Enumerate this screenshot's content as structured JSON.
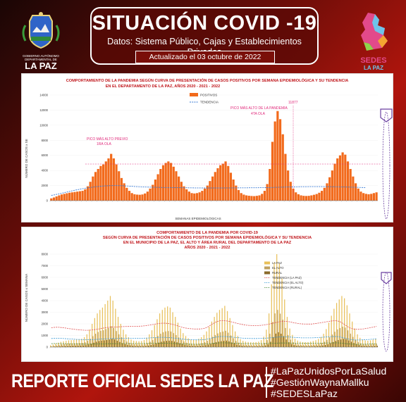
{
  "header": {
    "title": "SITUACIÓN COVID -19",
    "subtitle_line1": "Datos: Sistema Público, Cajas y Establecimientos Privados",
    "updated": "Actualizado el  03  octubre de 2022"
  },
  "logo_left": {
    "lines": [
      "GOBIERNO AUTÓNOMO",
      "DEPARTAMENTAL DE"
    ],
    "name": "LA PAZ"
  },
  "logo_right": {
    "name": "SEDES",
    "sub": "LA PAZ"
  },
  "colors": {
    "bar": "#f26a1b",
    "bar2": "#e8c05a",
    "bar3": "#8a6a2a",
    "trend": "#3a7bd5",
    "peak": "#e0287a",
    "footer_accent": "#ffffff"
  },
  "chart_data": [
    {
      "type": "bar",
      "title": "COMPORTAMIENTO DE LA PANDEMIA SEGÚN CURVA DE PRESENTACIÓN DE CASOS POSITIVOS POR SEMANA EPIDEMIOLÓGICA Y SU TENDENCIA",
      "subtitle": "EN EL DEPARTAMENTO DE LA PAZ, AÑOS 2020 - 2021 - 2022",
      "ylabel": "NÚMERO DE CASOS x SE",
      "xlabel": "SEMANAS EPIDEMIOLÓGICAS",
      "ylim": [
        0,
        14000
      ],
      "yticks": [
        0,
        2000,
        4000,
        6000,
        8000,
        10000,
        12000,
        14000
      ],
      "legend": [
        "POSITIVOS",
        "TENDENCIA"
      ],
      "legend_position": "top-right",
      "annotations": [
        {
          "text": "PICO MÁS ALTO PREVIO",
          "text2": "1RA OLA"
        },
        {
          "text": "PICO MÁS ALTO DE LA PANDEMIA",
          "text2": "4TA OLA"
        }
      ],
      "peak_label": "11877",
      "values": [
        300,
        420,
        560,
        700,
        820,
        900,
        980,
        1050,
        1100,
        1150,
        1200,
        1250,
        1300,
        1500,
        1900,
        2500,
        3200,
        3800,
        4200,
        4600,
        4800,
        5200,
        5600,
        6200,
        5600,
        4800,
        3900,
        3000,
        2300,
        1700,
        1300,
        1000,
        850,
        800,
        780,
        820,
        950,
        1200,
        1600,
        2100,
        2800,
        3500,
        4200,
        4700,
        5000,
        5200,
        5000,
        4500,
        3900,
        3200,
        2500,
        1900,
        1500,
        1200,
        1000,
        950,
        1000,
        1100,
        1300,
        1600,
        2000,
        2600,
        3200,
        3800,
        4300,
        4700,
        4900,
        5200,
        4600,
        3700,
        2800,
        2000,
        1400,
        1000,
        800,
        700,
        650,
        620,
        600,
        640,
        700,
        900,
        1300,
        2200,
        4200,
        7800,
        10500,
        11877,
        10800,
        8800,
        6200,
        4000,
        2500,
        1600,
        1100,
        850,
        700,
        640,
        620,
        640,
        700,
        780,
        880,
        1050,
        1300,
        1700,
        2300,
        3100,
        4000,
        4900,
        5600,
        6000,
        6400,
        6100,
        5200,
        4200,
        3200,
        2300,
        1600,
        1200,
        1000,
        900,
        850,
        900,
        1000,
        1100
      ],
      "trend": [
        700,
        760,
        830,
        900,
        980,
        1060,
        1140,
        1220,
        1300,
        1380,
        1450,
        1520,
        1580,
        1640,
        1700,
        1750,
        1800,
        1840,
        1880,
        1910,
        1940,
        1960,
        1980,
        1990,
        2000,
        2000,
        1990,
        1980,
        1960,
        1940,
        1920,
        1900,
        1880,
        1860,
        1840,
        1820,
        1810,
        1800,
        1790,
        1780,
        1770,
        1760,
        1755,
        1750,
        1745,
        1740,
        1735,
        1730,
        1725,
        1720,
        1715,
        1710,
        1705,
        1700,
        1695,
        1690,
        1688,
        1686,
        1684,
        1682,
        1680,
        1680,
        1680,
        1680,
        1680,
        1682,
        1684,
        1686,
        1688,
        1690,
        1692,
        1694,
        1696,
        1698,
        1700,
        1702,
        1704,
        1706,
        1708,
        1710,
        1715,
        1720,
        1725,
        1730,
        1740,
        1750,
        1760,
        1770,
        1780,
        1790,
        1800,
        1808,
        1816,
        1824,
        1832,
        1840,
        1845,
        1850,
        1852,
        1854,
        1856,
        1858,
        1860,
        1860,
        1860,
        1858,
        1856,
        1852,
        1848,
        1842,
        1836,
        1830,
        1820,
        1810,
        1800,
        1790,
        1780,
        1770,
        1760,
        1750,
        1740,
        1730
      ]
    },
    {
      "type": "bar",
      "title": "COMPORTAMIENTO DE LA PANDEMIA POR COVID-19",
      "subtitle": "SEGÚN CURVA DE PRESENTACIÓN DE CASOS POSITIVOS POR SEMANA EPIDEMIOLÓGICA Y SU TENDENCIA",
      "subtitle2": "EN EL  MUNICIPIO DE LA PAZ, EL ALTO Y ÁREA RURAL DEL DEPARTAMENTO DE LA PAZ",
      "subtitle3": "AÑOS 2020 - 2021 - 2022",
      "ylabel": "NÚMERO DE CASOS x SEMANA",
      "ylim": [
        0,
        8000
      ],
      "yticks": [
        0,
        1000,
        2000,
        3000,
        4000,
        5000,
        6000,
        7000,
        8000
      ],
      "legend": [
        "LA PAZ",
        "EL ALTO",
        "RURAL",
        "TENDENCIA (LA PAZ)",
        "TENDENCIA (EL ALTO)",
        "TENDENCIA (RURAL)"
      ],
      "legend_position": "top-right",
      "series_lapaz": [
        150,
        220,
        300,
        380,
        450,
        500,
        540,
        580,
        600,
        620,
        650,
        680,
        720,
        850,
        1100,
        1500,
        2000,
        2500,
        2900,
        3200,
        3400,
        3700,
        4000,
        4400,
        4000,
        3300,
        2600,
        2000,
        1500,
        1100,
        850,
        650,
        550,
        520,
        500,
        520,
        600,
        800,
        1100,
        1450,
        1900,
        2400,
        2900,
        3200,
        3400,
        3500,
        3400,
        3000,
        2600,
        2100,
        1600,
        1200,
        950,
        750,
        650,
        620,
        650,
        720,
        850,
        1050,
        1350,
        1750,
        2200,
        2600,
        2950,
        3200,
        3350,
        3550,
        3100,
        2500,
        1900,
        1350,
        950,
        680,
        540,
        470,
        440,
        420,
        410,
        430,
        470,
        600,
        900,
        1500,
        2900,
        5400,
        7300,
        8000,
        7200,
        5900,
        4100,
        2600,
        1600,
        1050,
        720,
        560,
        470,
        430,
        420,
        430,
        470,
        520,
        590,
        700,
        870,
        1150,
        1550,
        2100,
        2700,
        3300,
        3800,
        4100,
        4400,
        4200,
        3600,
        2900,
        2200,
        1600,
        1100,
        800,
        650,
        580,
        550,
        580,
        650,
        720
      ],
      "series_elalto": [
        80,
        110,
        150,
        190,
        230,
        260,
        280,
        300,
        310,
        320,
        330,
        340,
        360,
        420,
        540,
        720,
        940,
        1150,
        1300,
        1400,
        1450,
        1550,
        1650,
        1800,
        1650,
        1380,
        1100,
        850,
        650,
        480,
        370,
        290,
        240,
        230,
        220,
        230,
        260,
        340,
        460,
        600,
        780,
        960,
        1150,
        1280,
        1350,
        1380,
        1340,
        1200,
        1030,
        830,
        640,
        480,
        380,
        300,
        260,
        250,
        260,
        290,
        340,
        420,
        540,
        700,
        880,
        1040,
        1180,
        1280,
        1340,
        1400,
        1240,
        1000,
        760,
        540,
        380,
        270,
        220,
        190,
        180,
        170,
        165,
        175,
        190,
        240,
        360,
        600,
        1150,
        2150,
        2900,
        3200,
        2880,
        2360,
        1640,
        1040,
        640,
        420,
        290,
        225,
        190,
        172,
        168,
        172,
        188,
        208,
        236,
        280,
        348,
        460,
        620,
        840,
        1080,
        1320,
        1520,
        1640,
        1760,
        1680,
        1440,
        1160,
        880,
        640,
        440,
        320,
        260,
        232,
        220,
        232,
        260,
        288
      ],
      "series_rural": [
        30,
        45,
        60,
        75,
        90,
        100,
        110,
        115,
        120,
        125,
        130,
        135,
        145,
        170,
        220,
        290,
        380,
        460,
        520,
        560,
        580,
        620,
        660,
        720,
        660,
        550,
        440,
        340,
        260,
        190,
        150,
        115,
        95,
        92,
        88,
        92,
        104,
        136,
        184,
        240,
        312,
        384,
        460,
        512,
        540,
        552,
        536,
        480,
        412,
        332,
        256,
        192,
        152,
        120,
        104,
        100,
        104,
        116,
        136,
        168,
        216,
        280,
        352,
        416,
        472,
        512,
        536,
        560,
        496,
        400,
        304,
        216,
        152,
        108,
        88,
        76,
        72,
        68,
        66,
        70,
        76,
        96,
        144,
        240,
        460,
        860,
        1160,
        1280,
        1150,
        944,
        656,
        416,
        256,
        168,
        116,
        90,
        76,
        69,
        67,
        69,
        75,
        83,
        94,
        112,
        139,
        184,
        248,
        336,
        432,
        528,
        608,
        656,
        704,
        672,
        576,
        464,
        352,
        256,
        176,
        128,
        104,
        93,
        88,
        93,
        104,
        115
      ]
    }
  ],
  "footer": {
    "title": "REPORTE OFICIAL SEDES LA PAZ",
    "hashtags": [
      "#LaPazUnidosPorLaSalud",
      "#GestiónWaynaMallku",
      "#SEDESLaPaz"
    ]
  }
}
